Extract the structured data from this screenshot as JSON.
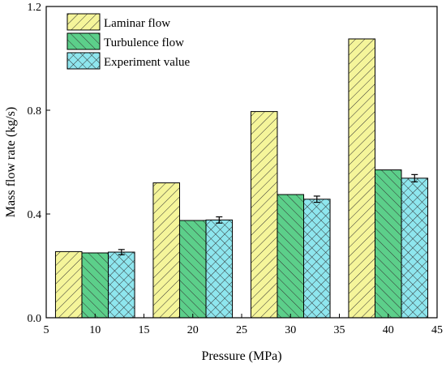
{
  "chart_data": {
    "type": "bar",
    "title": "",
    "xlabel": "Pressure (MPa)",
    "ylabel": "Mass flow rate (kg/s)",
    "xlim": [
      5,
      45
    ],
    "ylim": [
      0.0,
      1.2
    ],
    "x_ticks": [
      5,
      10,
      15,
      20,
      25,
      30,
      35,
      40,
      45
    ],
    "y_ticks": [
      0.0,
      0.4,
      0.8,
      1.2
    ],
    "x_tick_labels": [
      "5",
      "10",
      "15",
      "20",
      "25",
      "30",
      "35",
      "40",
      "45"
    ],
    "y_tick_labels": [
      "0.0",
      "0.4",
      "0.8",
      "1.2"
    ],
    "categories": [
      10,
      20,
      30,
      40
    ],
    "legend_position": "top-left",
    "grid": false,
    "series": [
      {
        "name": "Laminar flow",
        "color": "#f5f59a",
        "pattern": "diagonal-hatch",
        "values": [
          0.255,
          0.52,
          0.795,
          1.075
        ]
      },
      {
        "name": "Turbulence flow",
        "color": "#5ccf8a",
        "pattern": "diagonal-hatch",
        "values": [
          0.25,
          0.375,
          0.475,
          0.57
        ]
      },
      {
        "name": "Experiment value",
        "color": "#8ee6ee",
        "pattern": "cross-hatch",
        "values": [
          0.253,
          0.377,
          0.457,
          0.538
        ],
        "error": [
          0.01,
          0.012,
          0.012,
          0.014
        ]
      }
    ]
  }
}
